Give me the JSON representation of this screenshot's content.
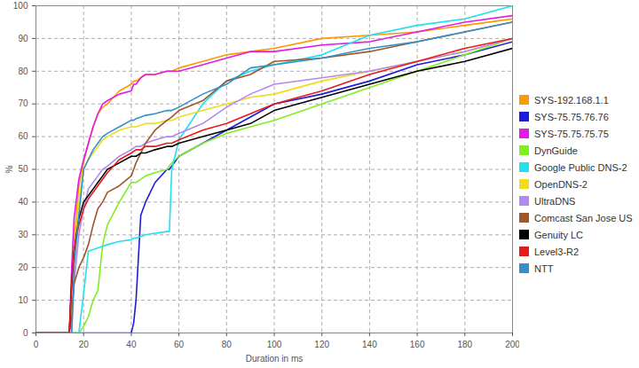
{
  "chart_data": {
    "type": "line",
    "x_label": "Duration in ms",
    "y_label": "%",
    "x": [
      0,
      14,
      15,
      16,
      18,
      20,
      22,
      24,
      26,
      28,
      30,
      35,
      40,
      41,
      42,
      44,
      46,
      50,
      55,
      56,
      57,
      60,
      70,
      80,
      90,
      100,
      120,
      140,
      160,
      180,
      200
    ],
    "xlim": [
      0,
      200
    ],
    "xticks": [
      0,
      20,
      40,
      60,
      80,
      100,
      120,
      140,
      160,
      180,
      200
    ],
    "ylim": [
      0,
      100
    ],
    "yticks": [
      0,
      10,
      20,
      30,
      40,
      50,
      60,
      70,
      80,
      90,
      100
    ],
    "grid": true,
    "legend": "right",
    "series": [
      {
        "name": "SYS-192.168.1.1",
        "color": "#ff9900",
        "values": [
          0,
          0,
          10,
          28,
          45,
          52,
          58,
          63,
          67,
          69,
          70,
          74,
          76,
          77,
          77,
          78,
          79,
          79,
          80,
          80,
          80,
          81,
          83,
          85,
          86,
          87,
          90,
          91,
          92,
          94,
          96
        ]
      },
      {
        "name": "SYS-75.75.76.76",
        "color": "#1c1cdc",
        "values": [
          0,
          0,
          0,
          0,
          0,
          0,
          0,
          0,
          0,
          0,
          0,
          0,
          0,
          3,
          10,
          36,
          40,
          46,
          50,
          50,
          51,
          54,
          58,
          62,
          66,
          70,
          73,
          77,
          82,
          85,
          89
        ]
      },
      {
        "name": "SYS-75.75.75.75",
        "color": "#e61ae6",
        "values": [
          0,
          0,
          20,
          35,
          47,
          53,
          58,
          63,
          67,
          70,
          71,
          73,
          74,
          76,
          76,
          78,
          79,
          79,
          80,
          80,
          80,
          80,
          82,
          84,
          86,
          86,
          88,
          89,
          92,
          95,
          97
        ]
      },
      {
        "name": "DynGuide",
        "color": "#80ee22",
        "values": [
          0,
          0,
          0,
          0,
          0,
          2,
          5,
          10,
          13,
          27,
          33,
          40,
          46,
          46,
          46,
          47,
          48,
          49,
          50,
          51,
          52,
          54,
          58,
          61,
          63,
          65,
          70,
          75,
          80,
          85,
          90
        ]
      },
      {
        "name": "Google Public DNS-2",
        "color": "#22e0f0",
        "values": [
          0,
          0,
          0,
          0,
          0,
          12,
          25,
          25.5,
          26,
          26.5,
          27,
          28,
          28.5,
          29,
          29,
          29.5,
          30,
          30.5,
          31,
          31,
          50,
          59,
          70,
          77,
          80,
          82,
          85,
          91,
          94,
          96,
          100
        ]
      },
      {
        "name": "OpenDNS-2",
        "color": "#f0dc1a",
        "values": [
          0,
          0,
          10,
          25,
          40,
          50,
          53,
          55,
          57,
          59,
          60,
          62,
          63,
          63,
          63,
          63.5,
          64,
          64,
          65,
          65,
          65,
          66,
          68,
          70,
          72,
          73,
          77,
          80,
          83,
          86,
          90
        ]
      },
      {
        "name": "UltraDNS",
        "color": "#b388f0",
        "values": [
          0,
          0,
          0,
          15,
          30,
          38,
          44,
          46,
          48,
          50,
          51,
          54,
          56,
          56.5,
          57,
          57,
          58,
          59,
          60,
          60,
          60,
          61,
          64,
          69,
          73,
          76,
          78,
          80,
          83,
          86,
          90
        ]
      },
      {
        "name": "Comcast San Jose US",
        "color": "#a0552d",
        "values": [
          0,
          0,
          5,
          15,
          20,
          23,
          27,
          33,
          38,
          40,
          43,
          45,
          48,
          50,
          52,
          55,
          58,
          62,
          65,
          65.5,
          66,
          68,
          71,
          77,
          79,
          83,
          84,
          86,
          89,
          92,
          95
        ]
      },
      {
        "name": "Genuity LC",
        "color": "#000000",
        "values": [
          0,
          0,
          15,
          25,
          35,
          40,
          42,
          44,
          46,
          48,
          50,
          52,
          54,
          54,
          54,
          55,
          55,
          56,
          57,
          57,
          57,
          58,
          60,
          62,
          64,
          68,
          72,
          76,
          80,
          83,
          87
        ]
      },
      {
        "name": "Level3-R2",
        "color": "#e61a1a",
        "values": [
          0,
          0,
          15,
          25,
          33,
          38,
          41,
          43,
          45,
          47,
          49,
          53,
          55,
          55.5,
          56,
          56,
          57,
          57,
          58,
          58,
          58,
          59,
          62,
          64,
          67,
          70,
          74,
          79,
          83,
          87,
          90
        ]
      },
      {
        "name": "NTT",
        "color": "#3390c8",
        "values": [
          0,
          0,
          0,
          20,
          36,
          50,
          53,
          56,
          58,
          60,
          61,
          63,
          65,
          65,
          65.5,
          66,
          66.5,
          67,
          68,
          68,
          68,
          69,
          73,
          76,
          81,
          82,
          84,
          87,
          89,
          92,
          95
        ]
      }
    ]
  }
}
